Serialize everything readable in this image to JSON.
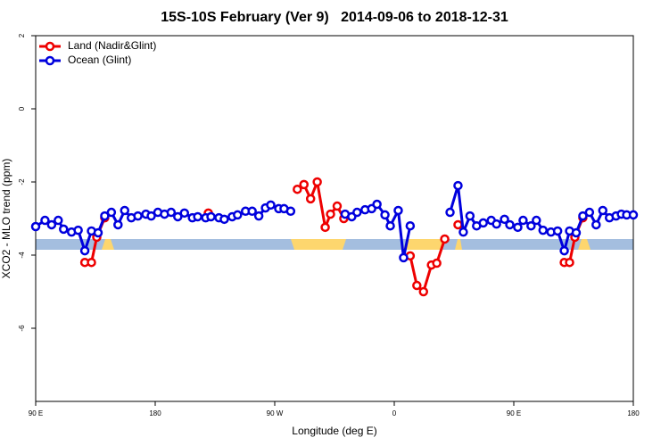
{
  "chart_data": {
    "type": "line",
    "title": "15S-10S February (Ver 9)   2014-09-06 to 2018-12-31",
    "x_label": "Longitude (deg E)",
    "y_label": "XCO2 - MLO trend (ppm)",
    "xlim": [
      90,
      540
    ],
    "xticks": [
      {
        "value": 90,
        "label": "90 E"
      },
      180,
      {
        "value": 270,
        "label": "90 W"
      },
      {
        "value": 360,
        "label": "0"
      },
      {
        "value": 450,
        "label": "90 E"
      },
      {
        "value": 540,
        "label": "180"
      }
    ],
    "ylim": [
      -8,
      2
    ],
    "yticks": [
      -6,
      -4,
      -2,
      0,
      2
    ],
    "legend": "topleft",
    "series": [
      {
        "name": "Land (Nadir&Glint)",
        "color": "#ee0000",
        "x": [
          127,
          132,
          136,
          142,
          null,
          220,
          null,
          287,
          292,
          297,
          302,
          308,
          312,
          317,
          322,
          null,
          372,
          377,
          382,
          388,
          392,
          398,
          null,
          408,
          null,
          488,
          492,
          496,
          502
        ],
        "values": [
          -4.2,
          -4.2,
          -3.51,
          -2.98,
          null,
          -2.85,
          null,
          -2.2,
          -2.07,
          -2.46,
          -2.0,
          -3.24,
          -2.88,
          -2.66,
          -3.0,
          null,
          -4.02,
          -4.83,
          -5.0,
          -4.27,
          -4.22,
          -3.56,
          null,
          -3.17,
          null,
          -4.2,
          -4.2,
          -3.51,
          -2.98
        ]
      },
      {
        "name": "Ocean (Glint)",
        "color": "#0000dd",
        "x": [
          90,
          97,
          102,
          107,
          111,
          117,
          122,
          127,
          132,
          137,
          142,
          147,
          152,
          157,
          162,
          167,
          173,
          177,
          182,
          187,
          192,
          197,
          202,
          208,
          212,
          218,
          222,
          228,
          232,
          238,
          242,
          248,
          253,
          258,
          263,
          267,
          273,
          277,
          282,
          null,
          323,
          328,
          332,
          338,
          343,
          347,
          353,
          357,
          363,
          367,
          372,
          null,
          402,
          408,
          412,
          417,
          422,
          427,
          433,
          437,
          443,
          447,
          453,
          457,
          463,
          467,
          472,
          478,
          483,
          488,
          492,
          497,
          502,
          507,
          512,
          517,
          522,
          527,
          531,
          535,
          540
        ],
        "values": [
          -3.22,
          -3.05,
          -3.17,
          -3.05,
          -3.29,
          -3.37,
          -3.32,
          -3.88,
          -3.34,
          -3.39,
          -2.93,
          -2.83,
          -3.17,
          -2.78,
          -2.98,
          -2.93,
          -2.88,
          -2.93,
          -2.83,
          -2.88,
          -2.83,
          -2.95,
          -2.85,
          -2.98,
          -2.95,
          -2.98,
          -2.95,
          -2.98,
          -3.02,
          -2.95,
          -2.9,
          -2.8,
          -2.8,
          -2.93,
          -2.71,
          -2.63,
          -2.73,
          -2.73,
          -2.8,
          null,
          -2.88,
          -2.95,
          -2.83,
          -2.76,
          -2.73,
          -2.61,
          -2.9,
          -3.2,
          -2.78,
          -4.07,
          -3.2,
          null,
          -2.83,
          -2.1,
          -3.37,
          -2.93,
          -3.2,
          -3.12,
          -3.05,
          -3.15,
          -3.02,
          -3.17,
          -3.24,
          -3.05,
          -3.2,
          -3.05,
          -3.32,
          -3.37,
          -3.34,
          -3.88,
          -3.34,
          -3.39,
          -2.93,
          -2.83,
          -3.17,
          -2.78,
          -2.98,
          -2.93,
          -2.88,
          -2.9,
          -2.9
        ]
      }
    ]
  }
}
